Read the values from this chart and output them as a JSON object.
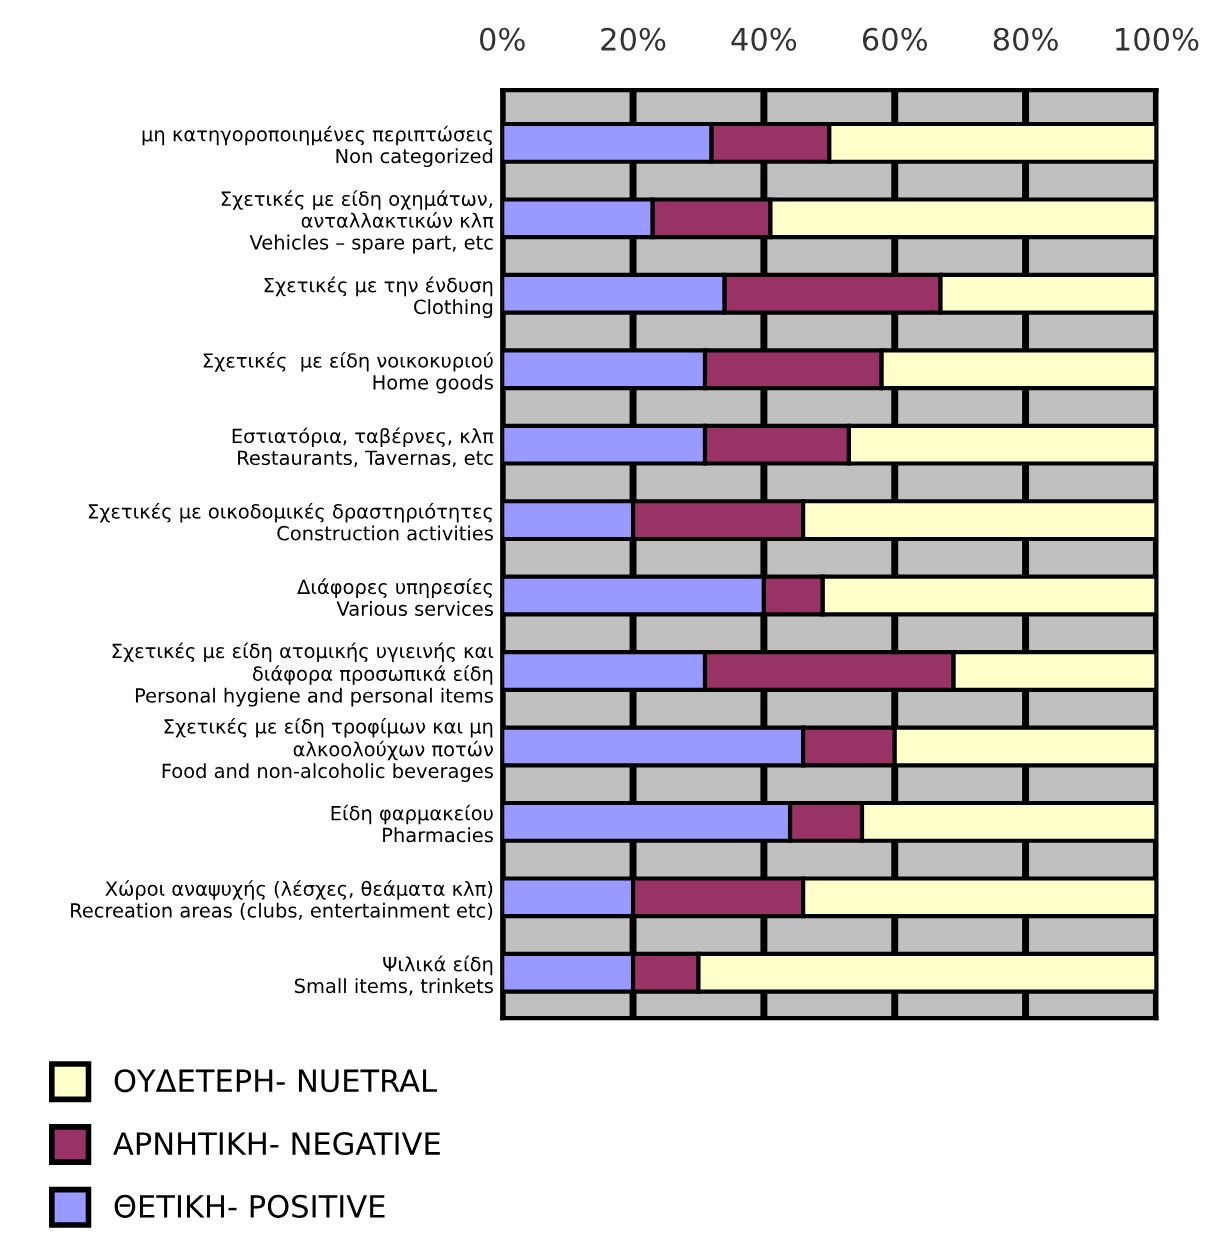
{
  "chart_data": {
    "type": "bar",
    "orientation": "horizontal",
    "stacked": true,
    "categories": [
      "μη κατηγοροποιημένες περιπτώσεις\nNon categorized",
      "Σχετικές με είδη οχημάτων,\nανταλλακτικών κλπ\nVehicles – spare part, etc",
      "Σχετικές με την ένδυση\nClothing",
      "Σχετικές  με είδη νοικοκυριού\nHome goods",
      "Εστιατόρια, ταβέρνες, κλπ\nRestaurants, Tavernas, etc",
      "Σχετικές με οικοδομικές δραστηριότητες\nConstruction activities",
      "Διάφορες υπηρεσίες\nVarious services",
      "Σχετικές με είδη ατομικής υγιεινής και\nδιάφορα προσωπικά είδη\nPersonal hygiene and personal items",
      "Σχετικές με είδη τροφίμων και μη\nαλκοολούχων ποτών\nFood and non-alcoholic beverages",
      "Είδη φαρμακείου\nPharmacies",
      "Χώροι αναψυχής (λέσχες, θεάματα κλπ)\nRecreation areas (clubs, entertainment etc)",
      "Ψιλικά είδη\nSmall items, trinkets"
    ],
    "series": [
      {
        "name": "ΘΕΤΙΚΗ- POSITIVE",
        "color": "#9999ff",
        "values": [
          32,
          23,
          34,
          31,
          31,
          20,
          40,
          31,
          46,
          44,
          20,
          20
        ]
      },
      {
        "name": "ΑΡΝΗΤΙΚΗ- NEGATIVE",
        "color": "#993366",
        "values": [
          18,
          18,
          33,
          27,
          22,
          26,
          9,
          38,
          14,
          11,
          26,
          10
        ]
      },
      {
        "name": "ΟΥΔΕΤΕΡΗ- NUETRAL",
        "color": "#ffffcc",
        "values": [
          50,
          59,
          33,
          42,
          47,
          54,
          51,
          31,
          40,
          45,
          54,
          70
        ]
      }
    ],
    "xlim": [
      0,
      100
    ],
    "xticks": [
      {
        "value": 0,
        "label": "0%"
      },
      {
        "value": 20,
        "label": "20%"
      },
      {
        "value": 40,
        "label": "40%"
      },
      {
        "value": 60,
        "label": "60%"
      },
      {
        "value": 80,
        "label": "80%"
      },
      {
        "value": 100,
        "label": "100%"
      }
    ],
    "grid": "x",
    "legend": "bottom left"
  }
}
